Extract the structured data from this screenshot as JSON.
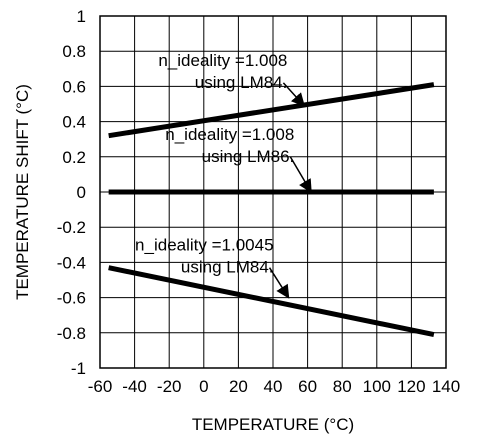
{
  "chart_data": {
    "type": "line",
    "xlabel": "TEMPERATURE (°C)",
    "ylabel": "TEMPERATURE SHIFT (°C)",
    "xlim": [
      -60,
      140
    ],
    "ylim": [
      -1,
      1
    ],
    "x_ticks": [
      -60,
      -40,
      -20,
      0,
      20,
      40,
      60,
      80,
      100,
      120,
      140
    ],
    "y_ticks": [
      1,
      0.8,
      0.6,
      0.4,
      0.2,
      0,
      -0.2,
      -0.4,
      -0.6,
      -0.8,
      -1
    ],
    "grid": true,
    "series": [
      {
        "x": [
          -55,
          133
        ],
        "y": [
          0.32,
          0.61
        ]
      },
      {
        "x": [
          -55,
          133
        ],
        "y": [
          0.0,
          0.0
        ]
      },
      {
        "x": [
          -55,
          133
        ],
        "y": [
          -0.43,
          -0.81
        ]
      }
    ],
    "annotations": [
      {
        "lines": [
          "n_ideality =1.008",
          "using LM84."
        ],
        "arrow_from": [
          46,
          0.62
        ],
        "arrow_to": [
          58,
          0.49
        ]
      },
      {
        "lines": [
          "n_ideality =1.008",
          "using LM86."
        ],
        "arrow_from": [
          50,
          0.2
        ],
        "arrow_to": [
          62,
          0.0
        ]
      },
      {
        "lines": [
          "n_ideality =1.0045",
          "using LM84."
        ],
        "arrow_from": [
          38,
          -0.43
        ],
        "arrow_to": [
          49,
          -0.6
        ]
      }
    ],
    "colors": {
      "line": "#000000",
      "grid": "#000000"
    }
  }
}
